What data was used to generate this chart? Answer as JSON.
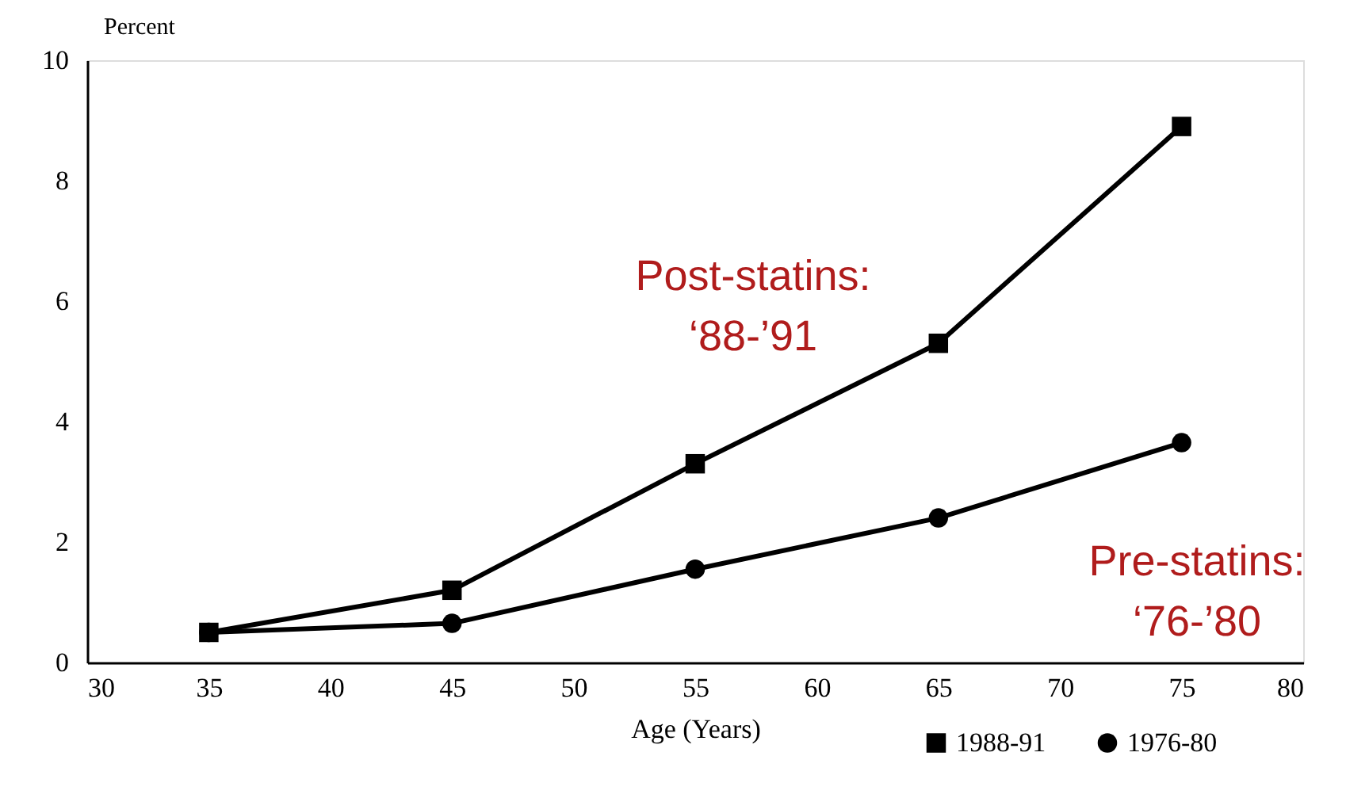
{
  "chart_data": {
    "type": "line",
    "xlabel": "Age (Years)",
    "ylabel": "Percent",
    "x": [
      35,
      45,
      55,
      65,
      75
    ],
    "series": [
      {
        "name": "1988-91",
        "color": "#000000",
        "marker": "square",
        "values": [
          0.5,
          1.2,
          3.3,
          5.3,
          8.9
        ]
      },
      {
        "name": "1976-80",
        "color": "#000000",
        "marker": "circle",
        "values": [
          0.5,
          0.65,
          1.55,
          2.4,
          3.65
        ]
      }
    ],
    "xlim": [
      30,
      80
    ],
    "xticks": [
      30,
      35,
      40,
      45,
      50,
      55,
      60,
      65,
      70,
      75,
      80
    ],
    "ylim": [
      0,
      10
    ],
    "yticks": [
      0,
      2,
      4,
      6,
      8,
      10
    ],
    "grid": false,
    "legend": "bottom right",
    "line_style": "solid",
    "annotations": [
      "Post-statins:\n‘88-’91",
      "Pre-statins:\n‘76-’80"
    ]
  }
}
